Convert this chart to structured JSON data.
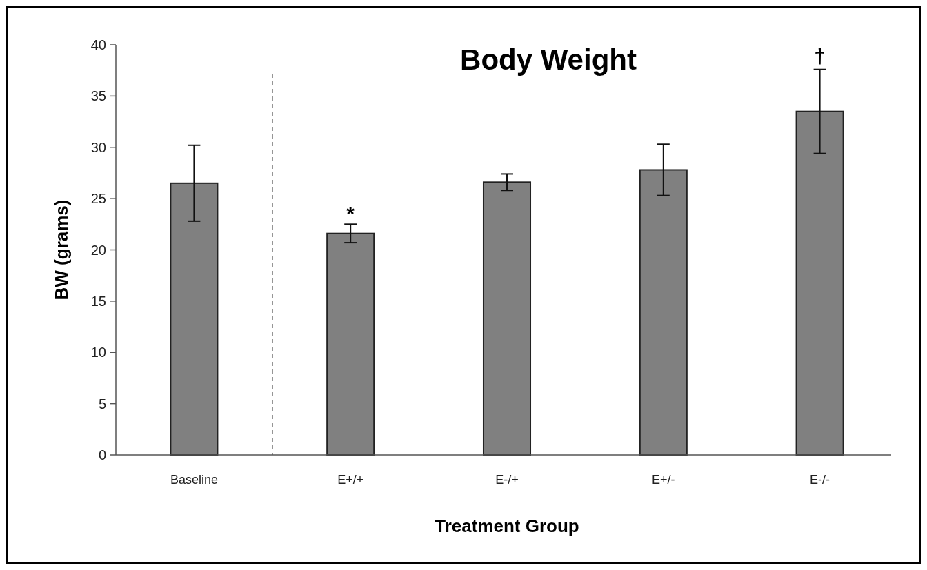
{
  "chart_data": {
    "type": "bar",
    "title": "Body Weight",
    "xlabel": "Treatment Group",
    "ylabel": "BW (grams)",
    "categories": [
      "Baseline",
      "E+/+",
      "E-/+",
      "E+/-",
      "E-/-"
    ],
    "values": [
      26.5,
      21.6,
      26.6,
      27.8,
      33.5
    ],
    "errors": [
      3.7,
      0.9,
      0.8,
      2.5,
      4.1
    ],
    "color": "#808080",
    "ylim": [
      0,
      40
    ],
    "yticks": [
      0,
      5,
      10,
      15,
      20,
      25,
      30,
      35,
      40
    ],
    "grid": false,
    "annotations": [
      "*",
      "†"
    ]
  }
}
